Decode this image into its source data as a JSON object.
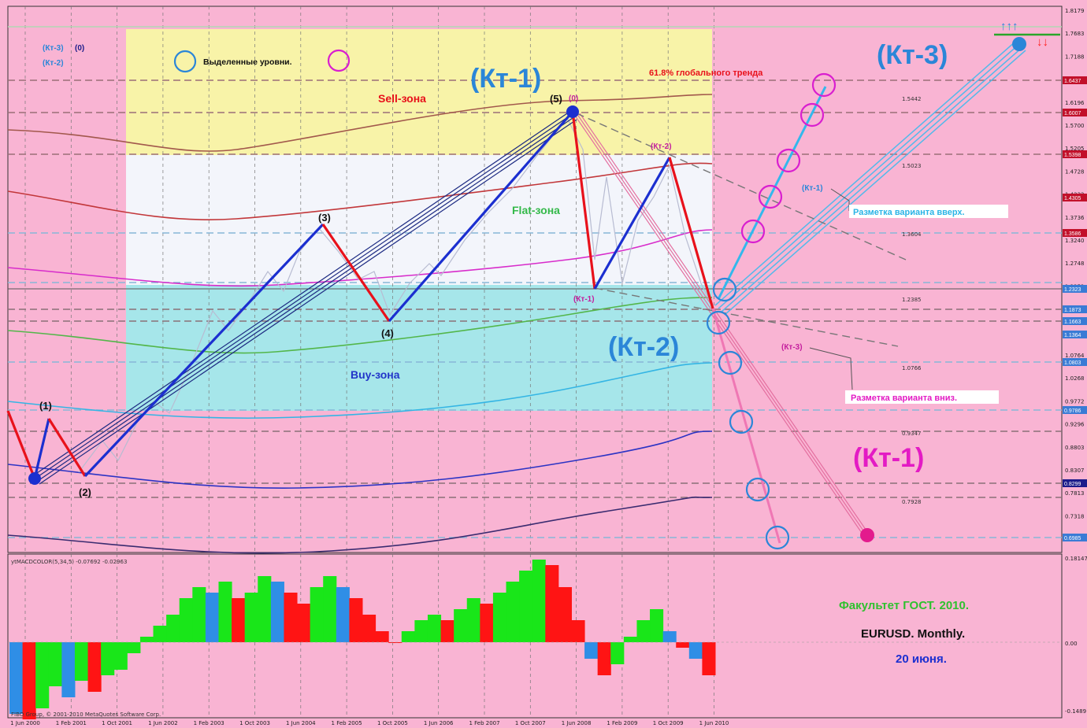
{
  "window": {
    "indicator_title": "ytMACDCOLOR(5,34,5) -0.07692 -0.02963",
    "copyright": "FIBO Group, © 2001-2010 MetaQuotes Software Corp."
  },
  "top_arrows": {
    "up": "↑↑↑",
    "down": "↓↓"
  },
  "legend": {
    "highlighted_levels": "Выделенные уровни.",
    "kt3_label": "(Кт-3)",
    "kt3_value": "(0)",
    "kt2_label": "(Кт-2)"
  },
  "zones": {
    "sell": "Sell-зона",
    "flat": "Flat-зона",
    "buy": "Buy-зона"
  },
  "fib_text": "61.8% глобального тренда",
  "big_labels": {
    "kt1_top": "(Кт-1)",
    "kt3": "(Кт-3)",
    "kt2": "(Кт-2)",
    "kt1_bottom": "(Кт-1)"
  },
  "wave_labels": {
    "w1": "(1)",
    "w2": "(2)",
    "w3": "(3)",
    "w4": "(4)",
    "w5": "(5)",
    "w0": "(0)",
    "kt2_small": "(Кт-2)",
    "kt1_small": "(Кт-1)",
    "kt1_right": "(Кт-1)",
    "kt3_small": "(Кт-3)"
  },
  "annotations": {
    "up_variant": "Разметка варианта вверх.",
    "down_variant": "Разметка варианта вниз."
  },
  "level_labels": [
    "1.5442",
    "1.5023",
    "1.3604",
    "1.2385",
    "1.0766",
    "0.9347",
    "0.7928"
  ],
  "price_axis": [
    "1.8179",
    "1.7683",
    "1.7188",
    "1.6692",
    "1.6196",
    "1.5700",
    "1.5205",
    "1.4728",
    "1.4232",
    "1.3736",
    "1.3240",
    "1.2748",
    "1.2252",
    "1.1756",
    "1.1260",
    "1.0764",
    "1.0268",
    "0.9772",
    "0.9296",
    "0.8803",
    "0.8307",
    "0.7813",
    "0.7318",
    "0.6838"
  ],
  "price_tags": [
    "1.6437",
    "1.6007",
    "1.5398",
    "1.4305",
    "1.3586",
    "1.2323",
    "1.1873",
    "1.1663",
    "1.1364",
    "1.0803",
    "0.9786",
    "0.8299",
    "0.6985"
  ],
  "macd_axis": [
    "0.18147",
    "0.00",
    "-0.1489"
  ],
  "time_axis": [
    "1 Jun 2000",
    "1 Feb 2001",
    "1 Oct 2001",
    "1 Jun 2002",
    "1 Feb 2003",
    "1 Oct 2003",
    "1 Jun 2004",
    "1 Feb 2005",
    "1 Oct 2005",
    "1 Jun 2006",
    "1 Feb 2007",
    "1 Oct 2007",
    "1 Jun 2008",
    "1 Feb 2009",
    "1 Oct 2009",
    "1 Jun 2010"
  ],
  "footer": {
    "faculty": "Факультет ГОСТ. 2010.",
    "symbol": "EURUSD. Monthly.",
    "date": "20 июня."
  },
  "colors": {
    "background": "#f9b4d3",
    "sell_zone": "#f8f3a8",
    "flat_zone": "#f3f5fb",
    "buy_zone": "#a6e6ea",
    "wave_up": "#1b2fd0",
    "wave_down": "#e8111b",
    "kt_blue": "#2b86d8",
    "kt_magenta": "#e31bc4",
    "macd_green": "#19e619",
    "macd_red": "#ff1414",
    "macd_blue": "#2f8ee6"
  },
  "chart_data": {
    "type": "line",
    "title": "EURUSD. Monthly.",
    "x_ticks": [
      "1 Jun 2000",
      "1 Feb 2001",
      "1 Oct 2001",
      "1 Jun 2002",
      "1 Feb 2003",
      "1 Oct 2003",
      "1 Jun 2004",
      "1 Feb 2005",
      "1 Oct 2005",
      "1 Jun 2006",
      "1 Feb 2007",
      "1 Oct 2007",
      "1 Jun 2008",
      "1 Feb 2009",
      "1 Oct 2009",
      "1 Jun 2010"
    ],
    "ylim": [
      0.6838,
      1.8179
    ],
    "wave_points": [
      {
        "label": "(1)",
        "date": "2001-01",
        "price": 0.96
      },
      {
        "label": "(2)",
        "date": "2001-07",
        "price": 0.84
      },
      {
        "label": "(3)",
        "date": "2004-12",
        "price": 1.36
      },
      {
        "label": "(4)",
        "date": "2005-11",
        "price": 1.17
      },
      {
        "label": "(5)",
        "date": "2008-07",
        "price": 1.6
      },
      {
        "label": "(Кт-1)",
        "date": "2008-10",
        "price": 1.25
      },
      {
        "label": "(Кт-2)",
        "date": "2009-11",
        "price": 1.51
      },
      {
        "label": "(Кт-1)",
        "date": "2010-06",
        "price": 1.19
      }
    ],
    "macd": {
      "name": "ytMACDCOLOR(5,34,5)",
      "values": [
        -0.13,
        -0.14,
        -0.12,
        -0.08,
        -0.1,
        -0.07,
        -0.09,
        -0.06,
        -0.05,
        -0.02,
        0.01,
        0.03,
        0.05,
        0.08,
        0.1,
        0.09,
        0.11,
        0.08,
        0.09,
        0.12,
        0.11,
        0.09,
        0.07,
        0.1,
        0.12,
        0.1,
        0.08,
        0.05,
        0.02,
        0.0,
        0.02,
        0.04,
        0.05,
        0.04,
        0.06,
        0.08,
        0.07,
        0.09,
        0.11,
        0.13,
        0.15,
        0.14,
        0.1,
        0.04,
        -0.03,
        -0.06,
        -0.04,
        0.01,
        0.04,
        0.06,
        0.02,
        -0.01,
        -0.03,
        -0.06
      ]
    }
  }
}
